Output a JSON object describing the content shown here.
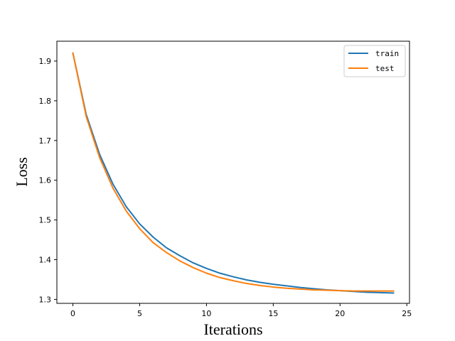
{
  "chart_data": {
    "type": "line",
    "title": "",
    "xlabel": "Iterations",
    "ylabel": "Loss",
    "xlim": [
      -1.2,
      25.2
    ],
    "ylim": [
      1.29,
      1.95
    ],
    "xticks": [
      0,
      5,
      10,
      15,
      20,
      25
    ],
    "yticks": [
      1.3,
      1.4,
      1.5,
      1.6,
      1.7,
      1.8,
      1.9
    ],
    "x": [
      0,
      1,
      2,
      3,
      4,
      5,
      6,
      7,
      8,
      9,
      10,
      11,
      12,
      13,
      14,
      15,
      16,
      17,
      18,
      19,
      20,
      21,
      22,
      23,
      24
    ],
    "grid": false,
    "legend_position": "top-right",
    "series": [
      {
        "name": "train",
        "color": "#1f77b4",
        "values": [
          1.92,
          1.765,
          1.665,
          1.59,
          1.533,
          1.49,
          1.457,
          1.43,
          1.41,
          1.392,
          1.378,
          1.366,
          1.357,
          1.349,
          1.343,
          1.338,
          1.334,
          1.33,
          1.327,
          1.324,
          1.322,
          1.32,
          1.318,
          1.317,
          1.316
        ]
      },
      {
        "name": "test",
        "color": "#ff7f0e",
        "values": [
          1.92,
          1.76,
          1.657,
          1.58,
          1.522,
          1.478,
          1.443,
          1.418,
          1.397,
          1.38,
          1.366,
          1.355,
          1.347,
          1.34,
          1.335,
          1.331,
          1.328,
          1.326,
          1.324,
          1.323,
          1.322,
          1.321,
          1.321,
          1.321,
          1.321
        ]
      }
    ]
  }
}
